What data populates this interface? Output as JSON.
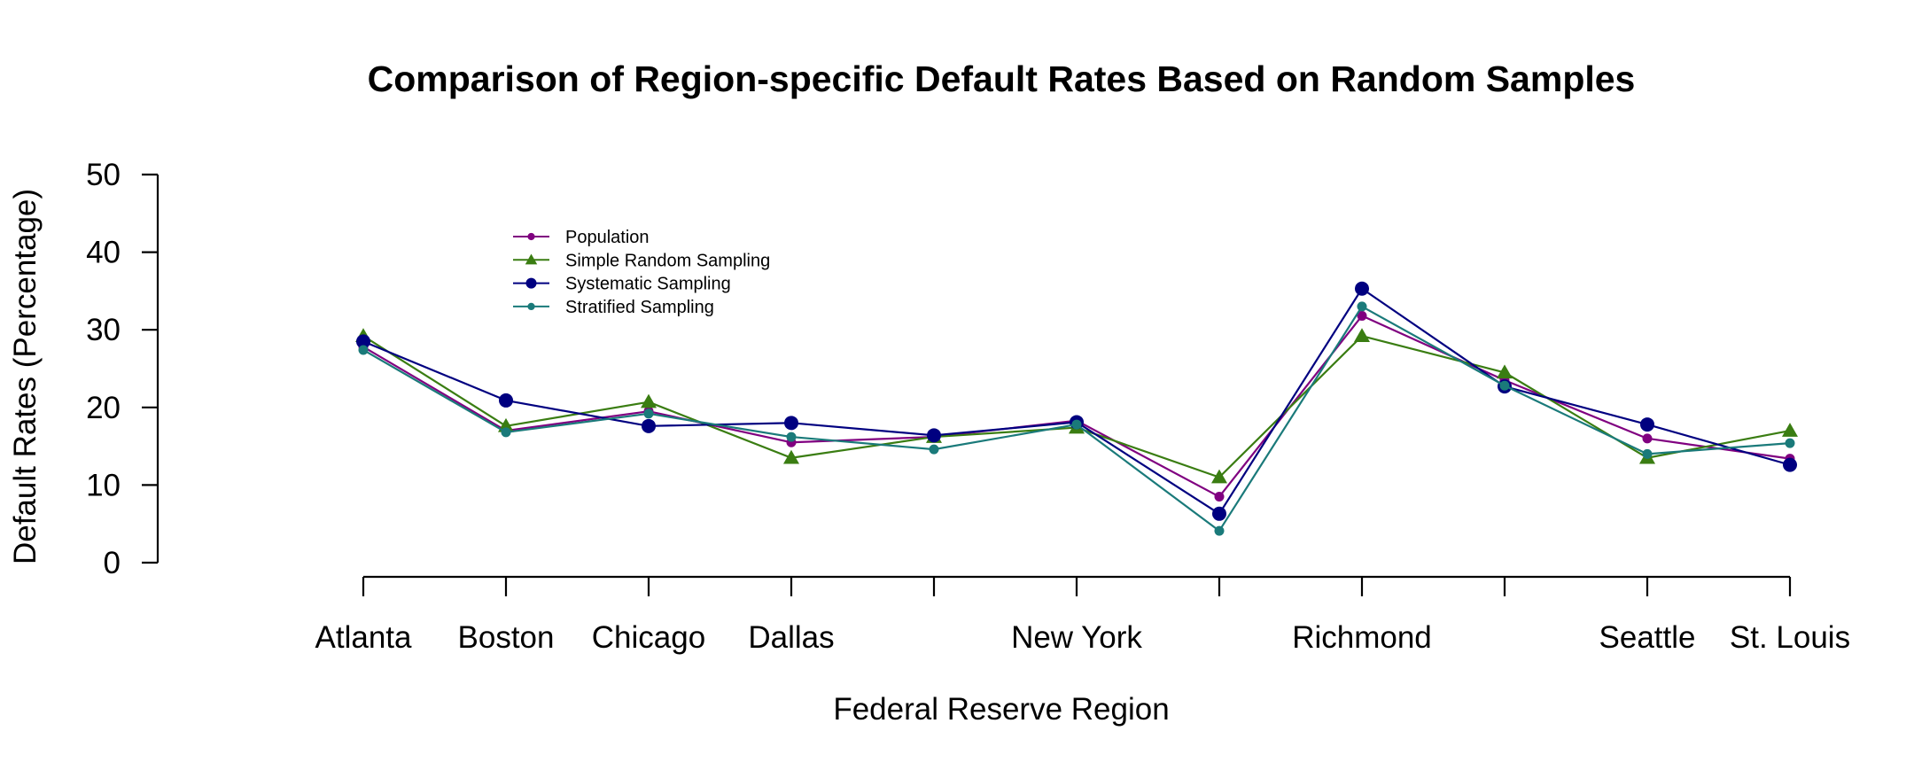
{
  "chart_data": {
    "type": "line",
    "title": "Comparison of Region-specific Default Rates Based on Random Samples",
    "xlabel": "Federal Reserve Region",
    "ylabel": "Default Rates (Percentage)",
    "ylim": [
      0,
      50
    ],
    "yticks": [
      "0",
      "10",
      "20",
      "30",
      "40",
      "50"
    ],
    "categories": [
      "Atlanta",
      "Boston",
      "Chicago",
      "Dallas",
      "",
      "New York",
      "",
      "Richmond",
      "",
      "Seattle",
      "St. Louis"
    ],
    "grid": false,
    "legend_position": "top-left",
    "series": [
      {
        "name": "Population",
        "color": "#800080",
        "marker": "circle-small",
        "values": [
          27.8,
          17.0,
          19.5,
          15.5,
          16.2,
          18.3,
          8.5,
          31.8,
          23.5,
          16.0,
          13.4
        ]
      },
      {
        "name": "Simple Random Sampling",
        "color": "#3a7d12",
        "marker": "triangle",
        "values": [
          29.2,
          17.6,
          20.7,
          13.5,
          16.2,
          17.4,
          11.0,
          29.2,
          24.5,
          13.5,
          17.0
        ]
      },
      {
        "name": "Systematic Sampling",
        "color": "#000080",
        "marker": "circle-large",
        "values": [
          28.5,
          20.9,
          17.6,
          18.0,
          16.4,
          18.1,
          6.3,
          35.3,
          22.7,
          17.8,
          12.6
        ]
      },
      {
        "name": "Stratified Sampling",
        "color": "#1a7a7a",
        "marker": "circle-small",
        "values": [
          27.4,
          16.8,
          19.2,
          16.2,
          14.6,
          17.8,
          4.1,
          33.0,
          22.8,
          14.0,
          15.4
        ]
      }
    ]
  }
}
